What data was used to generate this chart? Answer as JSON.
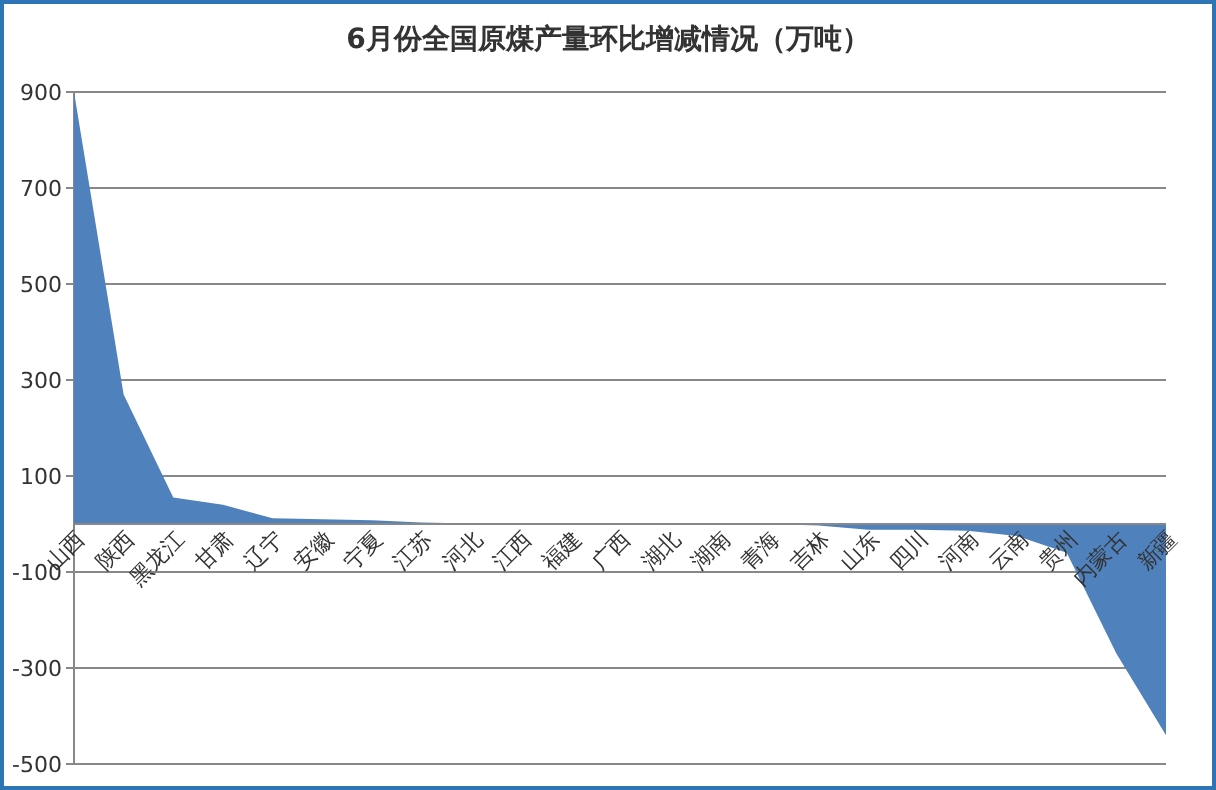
{
  "chart_data": {
    "type": "area",
    "title": "6月份全国原煤产量环比增减情况（万吨）",
    "categories": [
      "山西",
      "陕西",
      "黑龙江",
      "甘肃",
      "辽宁",
      "安徽",
      "宁夏",
      "江苏",
      "河北",
      "江西",
      "福建",
      "广西",
      "湖北",
      "湖南",
      "青海",
      "吉林",
      "山东",
      "四川",
      "河南",
      "云南",
      "贵州",
      "内蒙古",
      "新疆"
    ],
    "series": [
      {
        "color": "#4f81bd",
        "values": [
          900,
          270,
          55,
          40,
          12,
          10,
          8,
          3,
          1,
          0,
          0,
          0,
          0,
          0,
          0,
          -3,
          -12,
          -12,
          -14,
          -25,
          -60,
          -270,
          -440
        ]
      }
    ],
    "ylim": [
      -500,
      900
    ],
    "yticks": [
      -500,
      -300,
      -100,
      100,
      300,
      500,
      700,
      900
    ],
    "grid": "y"
  }
}
